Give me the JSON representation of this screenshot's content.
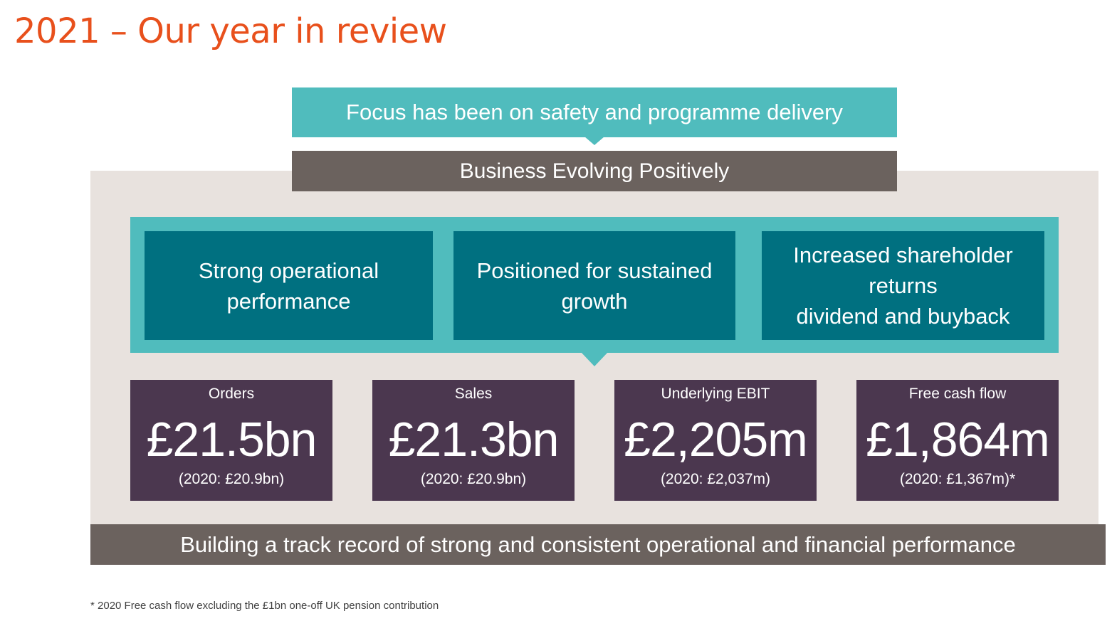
{
  "slide": {
    "title": "2021 – Our year in review",
    "focus_banner": "Focus has been on safety and programme delivery",
    "evolving_banner": "Business Evolving Positively",
    "pillars": [
      {
        "lines": [
          "Strong operational",
          "performance"
        ]
      },
      {
        "lines": [
          "Positioned for sustained",
          "growth"
        ]
      },
      {
        "lines": [
          "Increased shareholder",
          "returns",
          "dividend and buyback"
        ]
      }
    ],
    "kpis": [
      {
        "label": "Orders",
        "value": "£21.5bn",
        "prior": "(2020: £20.9bn)"
      },
      {
        "label": "Sales",
        "value": "£21.3bn",
        "prior": "(2020: £20.9bn)"
      },
      {
        "label": "Underlying EBIT",
        "value": "£2,205m",
        "prior": "(2020: £2,037m)"
      },
      {
        "label": "Free cash flow",
        "value": "£1,864m",
        "prior": "(2020: £1,367m)*"
      }
    ],
    "bottom_banner": "Building a track record of strong and consistent operational and financial performance",
    "footnote": "* 2020 Free cash flow excluding the £1bn one-off UK pension  contribution"
  },
  "colors": {
    "title": "#e8501c",
    "teal_light": "#50bcbd",
    "teal_dark": "#007080",
    "grey_brown": "#6b625e",
    "plum": "#4b374f",
    "beige": "#e8e2de"
  }
}
